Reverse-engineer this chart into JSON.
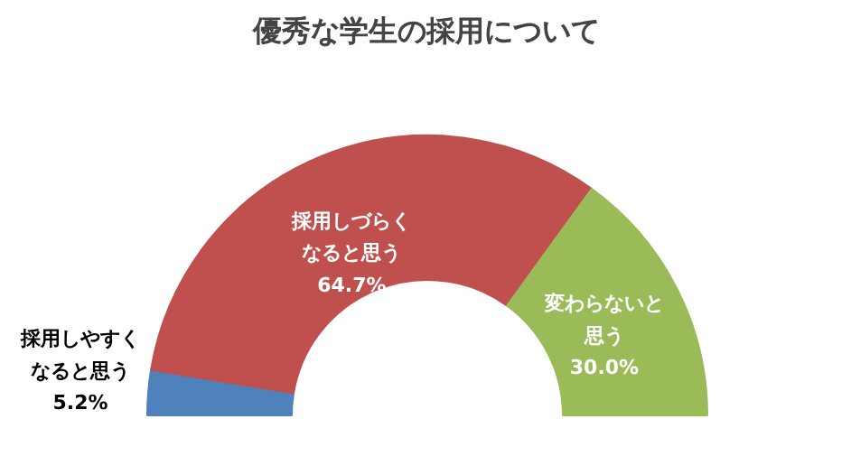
{
  "chart_data": {
    "type": "donut",
    "title": "優秀な学生の採用について",
    "categories": [
      "採用しやすくなると思う",
      "採用しづらくなると思う",
      "変わらないと思う"
    ],
    "values": [
      5.2,
      64.7,
      30.0
    ],
    "colors": [
      "#4f81bd",
      "#c0504d",
      "#9bbb59"
    ],
    "value_labels": [
      "5.2%",
      "64.7%",
      "30.0%"
    ]
  }
}
